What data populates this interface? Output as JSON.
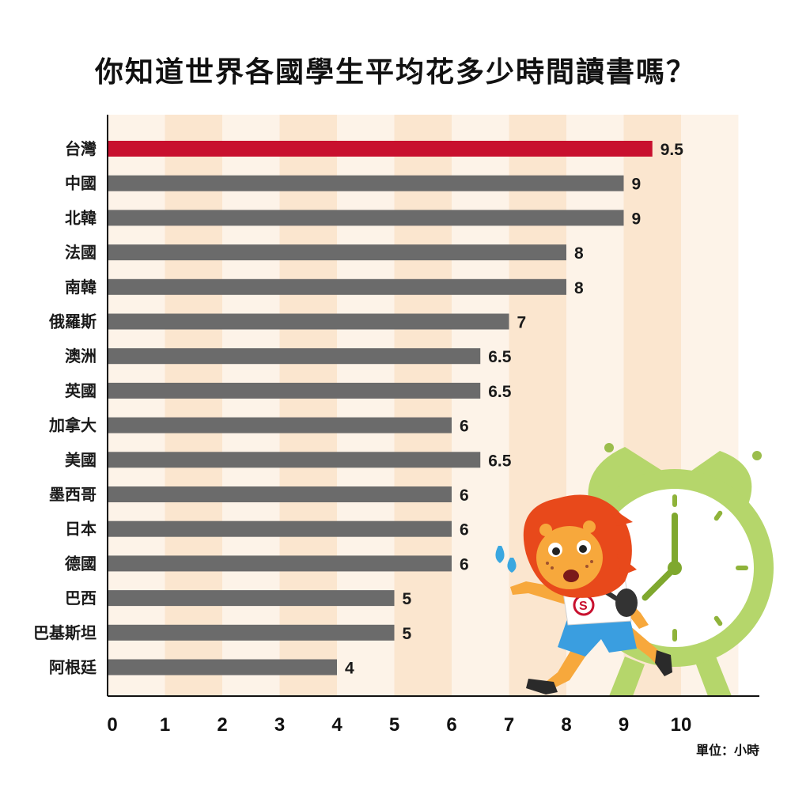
{
  "chart_data": {
    "type": "bar",
    "orientation": "horizontal",
    "title": "你知道世界各國學生平均花多少時間讀書嗎？",
    "unit_label": "單位：小時",
    "categories": [
      "台灣",
      "中國",
      "北韓",
      "法國",
      "南韓",
      "俄羅斯",
      "澳洲",
      "英國",
      "加拿大",
      "美國",
      "墨西哥",
      "日本",
      "德國",
      "巴西",
      "巴基斯坦",
      "阿根廷"
    ],
    "values": [
      9.5,
      9,
      9,
      8,
      8,
      7,
      6.5,
      6.5,
      6,
      6.5,
      6,
      6,
      6,
      5,
      5,
      4
    ],
    "value_labels": [
      "9.5",
      "9",
      "9",
      "8",
      "8",
      "7",
      "6.5",
      "6.5",
      "6",
      "6.5",
      "6",
      "6",
      "6",
      "5",
      "5",
      "4"
    ],
    "highlight_category": "台灣",
    "x_ticks": [
      "0",
      "1",
      "2",
      "3",
      "4",
      "5",
      "6",
      "7",
      "8",
      "9",
      "10"
    ],
    "xlim": [
      0,
      11
    ],
    "grid": "alternating column bands",
    "colors": {
      "highlight_bar": "#c8102e",
      "bar": "#6b6b6b",
      "band_light": "#fdf3e8",
      "band_dark": "#fbe6cf",
      "axis": "#111111"
    }
  },
  "illustration": {
    "description_icons": [
      "running-lion-icon",
      "alarm-clock-icon"
    ]
  }
}
